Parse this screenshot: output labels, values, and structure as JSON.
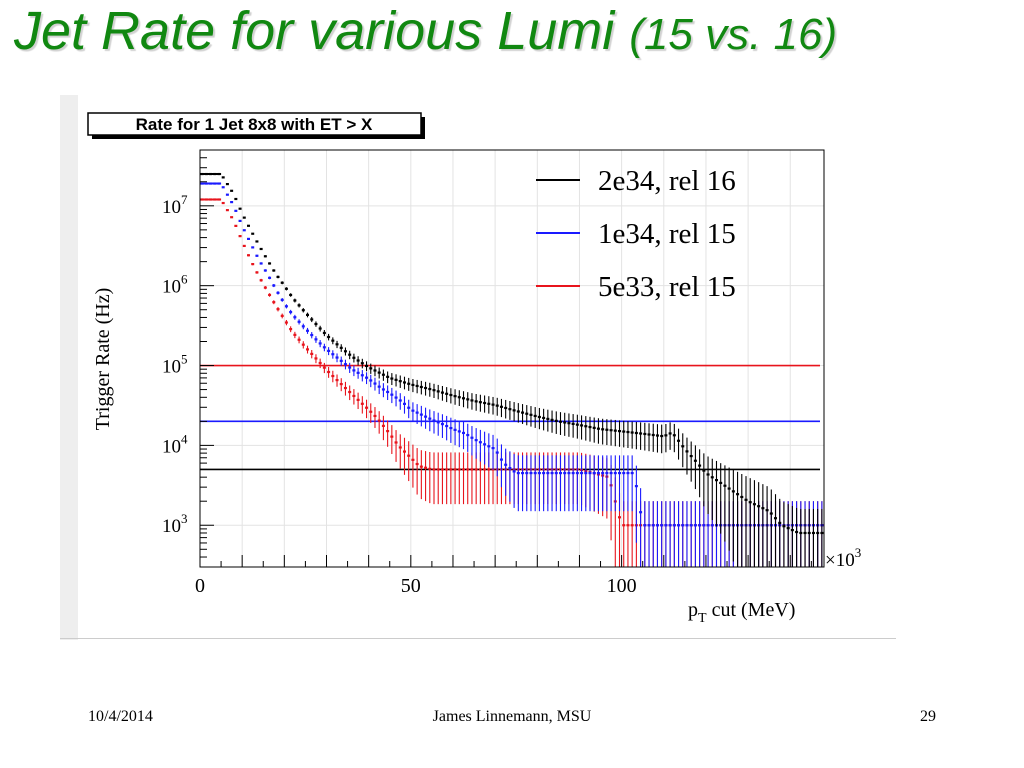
{
  "slide": {
    "title_main": "Jet Rate for various Lumi",
    "title_sub": "(15 vs. 16)",
    "footer_date": "10/4/2014",
    "footer_author": "James Linnemann, MSU",
    "page_number": "29"
  },
  "colors": {
    "title": "#118811",
    "black_series": "#000000",
    "blue_series": "#1a1aff",
    "red_series": "#e8141c"
  },
  "chart_data": {
    "type": "line",
    "title": "Rate for 1 Jet 8x8 with ET > X",
    "ylabel": "Trigger Rate (Hz)",
    "xlabel_main": "p",
    "xlabel_sub": "T",
    "xlabel_rest": " cut (MeV)",
    "x_multiplier": "×10",
    "x_multiplier_exp": "3",
    "x_scale_factor": 1000,
    "xlim": [
      0,
      148
    ],
    "ylim": [
      300,
      50000000
    ],
    "yscale": "log",
    "grid": true,
    "legend_position": "top-right",
    "x_ticks": [
      0,
      50,
      100
    ],
    "y_ticks": [
      1000,
      10000,
      100000,
      1000000,
      10000000
    ],
    "y_tick_labels": [
      {
        "base": "10",
        "exp": "3"
      },
      {
        "base": "10",
        "exp": "4"
      },
      {
        "base": "10",
        "exp": "5"
      },
      {
        "base": "10",
        "exp": "6"
      },
      {
        "base": "10",
        "exp": "7"
      }
    ],
    "series": [
      {
        "name": "2e34, rel 16",
        "color": "#000000",
        "threshold": 5000,
        "x": [
          0,
          5,
          8,
          10,
          12,
          14,
          16,
          18,
          20,
          22,
          25,
          28,
          30,
          33,
          36,
          40,
          45,
          50,
          55,
          60,
          65,
          70,
          75,
          80,
          85,
          90,
          95,
          100,
          105,
          110,
          112,
          115,
          118,
          120,
          125,
          130,
          135,
          138,
          142,
          145
        ],
        "y": [
          25000000,
          25000000,
          14000000,
          8000000,
          5000000,
          3200000,
          2100000,
          1400000,
          1000000,
          700000,
          460000,
          310000,
          240000,
          175000,
          130000,
          95000,
          70000,
          58000,
          50000,
          42000,
          36000,
          32000,
          27000,
          23000,
          20000,
          18000,
          16000,
          15000,
          14000,
          13000,
          14500,
          9000,
          6000,
          4500,
          3000,
          2000,
          1500,
          1000,
          800,
          800
        ]
      },
      {
        "name": "1e34, rel 15",
        "color": "#1a1aff",
        "threshold": 20000,
        "x": [
          0,
          5,
          8,
          10,
          12,
          14,
          16,
          18,
          20,
          22,
          25,
          28,
          30,
          33,
          36,
          40,
          43,
          45,
          48,
          50,
          52,
          55,
          58,
          60,
          63,
          65,
          68,
          70,
          72,
          75,
          80,
          90,
          100,
          103,
          105,
          110,
          120,
          130,
          140,
          145
        ],
        "y": [
          19000000,
          19000000,
          10000000,
          5600000,
          3400000,
          2100000,
          1400000,
          900000,
          600000,
          430000,
          290000,
          200000,
          160000,
          120000,
          90000,
          68000,
          52000,
          45000,
          35000,
          28000,
          25000,
          21000,
          18000,
          16000,
          14000,
          12000,
          10000,
          9000,
          6000,
          4500,
          4500,
          4500,
          4500,
          4500,
          1000,
          1000,
          1000,
          1000,
          1000,
          1000
        ]
      },
      {
        "name": "5e33, rel 15",
        "color": "#e8141c",
        "threshold": 100000,
        "x": [
          0,
          5,
          8,
          10,
          12,
          14,
          16,
          18,
          20,
          22,
          25,
          28,
          30,
          33,
          36,
          40,
          42,
          45,
          47,
          50,
          52,
          55,
          60,
          65,
          70,
          80,
          90,
          97,
          98,
          100,
          110,
          120,
          130,
          140,
          145
        ],
        "y": [
          12000000,
          12000000,
          6500000,
          3600000,
          2100000,
          1300000,
          850000,
          560000,
          380000,
          260000,
          170000,
          115000,
          88000,
          62000,
          44000,
          28000,
          22000,
          14000,
          10000,
          7000,
          5500,
          5000,
          5000,
          5000,
          5000,
          5000,
          5000,
          4000,
          2500,
          1000,
          1000,
          1000,
          1000,
          1000,
          1000
        ]
      }
    ]
  }
}
